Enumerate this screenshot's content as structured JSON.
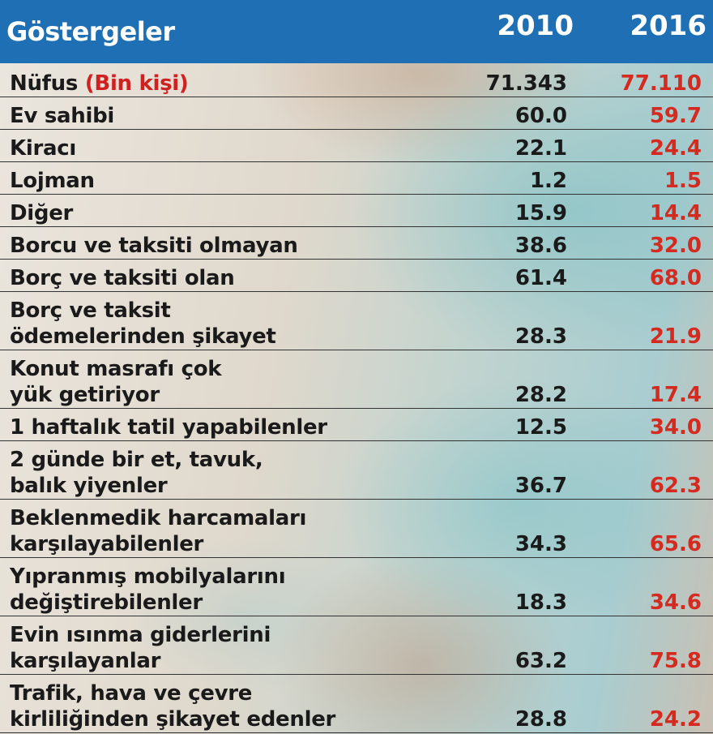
{
  "header": {
    "label": "Göstergeler",
    "year1": "2010",
    "year2": "2016"
  },
  "colors": {
    "header_bg": "#1e6fb3",
    "value_2016": "#d42a1f",
    "text": "#1a1a1a"
  },
  "chart_data": {
    "type": "table",
    "columns": [
      "Göstergeler",
      "2010",
      "2016"
    ],
    "rows": [
      {
        "label": "Nüfus",
        "unit": "(Bin kişi)",
        "v2010": "71.343",
        "v2016": "77.110"
      },
      {
        "label": "Ev sahibi",
        "v2010": "60.0",
        "v2016": "59.7"
      },
      {
        "label": "Kiracı",
        "v2010": "22.1",
        "v2016": "24.4"
      },
      {
        "label": "Lojman",
        "v2010": "1.2",
        "v2016": "1.5"
      },
      {
        "label": "Diğer",
        "v2010": "15.9",
        "v2016": "14.4"
      },
      {
        "label": "Borcu ve taksiti olmayan",
        "v2010": "38.6",
        "v2016": "32.0"
      },
      {
        "label": "Borç ve taksiti olan",
        "v2010": "61.4",
        "v2016": "68.0"
      },
      {
        "label": "Borç ve taksit\nödemelerinden şikayet",
        "v2010": "28.3",
        "v2016": "21.9"
      },
      {
        "label": "Konut masrafı çok\nyük getiriyor",
        "v2010": "28.2",
        "v2016": "17.4"
      },
      {
        "label": "1 haftalık tatil yapabilenler",
        "v2010": "12.5",
        "v2016": "34.0"
      },
      {
        "label": "2 günde bir et, tavuk,\nbalık yiyenler",
        "v2010": "36.7",
        "v2016": "62.3"
      },
      {
        "label": "Beklenmedik harcamaları\nkarşılayabilenler",
        "v2010": "34.3",
        "v2016": "65.6"
      },
      {
        "label": "Yıpranmış mobilyalarını\ndeğiştirebilenler",
        "v2010": "18.3",
        "v2016": "34.6"
      },
      {
        "label": "Evin ısınma giderlerini\nkarşılayanlar",
        "v2010": "63.2",
        "v2016": "75.8"
      },
      {
        "label": "Trafik, hava ve çevre\nkirliliğinden şikayet edenler",
        "v2010": "28.8",
        "v2016": "24.2"
      }
    ]
  }
}
